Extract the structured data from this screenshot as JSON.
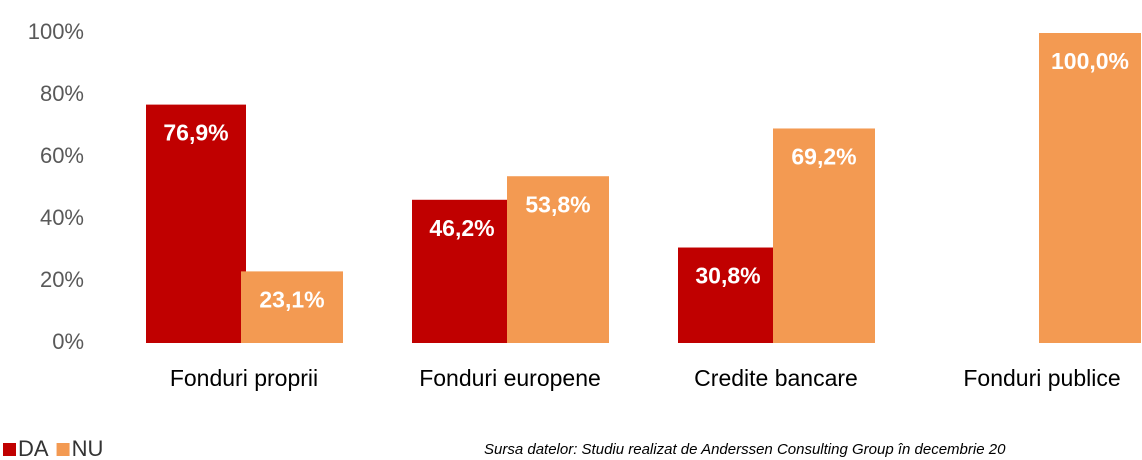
{
  "chart_data": {
    "type": "bar",
    "categories": [
      "Fonduri proprii",
      "Fonduri europene",
      "Credite bancare",
      "Fonduri publice"
    ],
    "series": [
      {
        "name": "DA",
        "color": "#c00000",
        "values": [
          76.9,
          46.2,
          30.8,
          null
        ],
        "value_labels": [
          "76,9%",
          "46,2%",
          "30,8%",
          null
        ]
      },
      {
        "name": "NU",
        "color": "#f39a52",
        "values": [
          23.1,
          53.8,
          69.2,
          100
        ],
        "value_labels": [
          "23,1%",
          "53,8%",
          "69,2%",
          "100,0%"
        ]
      }
    ],
    "ylim": [
      0,
      100
    ],
    "yticks": [
      {
        "value": 0,
        "label": "0%"
      },
      {
        "value": 20,
        "label": "20%"
      },
      {
        "value": 40,
        "label": "40%"
      },
      {
        "value": 60,
        "label": "60%"
      },
      {
        "value": 80,
        "label": "80%"
      },
      {
        "value": 100,
        "label": "100%"
      }
    ],
    "grid": false,
    "legend": "bottom-left",
    "source": "Sursa datelor: Studiu realizat de Anderssen Consulting Group în decembrie 20"
  }
}
